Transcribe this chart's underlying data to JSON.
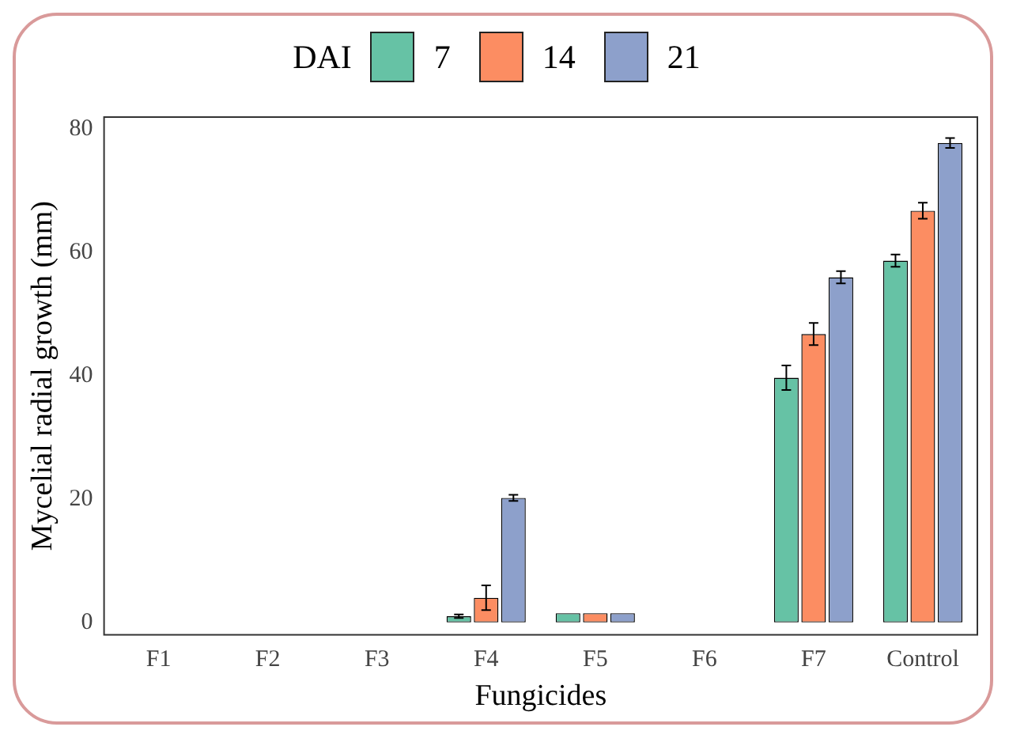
{
  "chart_data": {
    "type": "bar",
    "xlabel": "Fungicides",
    "ylabel": "Mycelial radial growth (mm)",
    "legend_title": "DAI",
    "legend": "top",
    "categories": [
      "F1",
      "F2",
      "F3",
      "F4",
      "F5",
      "F6",
      "F7",
      "Control"
    ],
    "series": [
      {
        "name": "7",
        "color": "#66c2a5",
        "values": [
          0,
          0,
          0,
          1,
          1.5,
          0,
          39.7,
          58.7
        ],
        "errors": [
          null,
          null,
          null,
          0.3,
          null,
          null,
          2,
          1
        ]
      },
      {
        "name": "14",
        "color": "#fc8d62",
        "values": [
          0,
          0,
          0,
          4,
          1.5,
          0,
          46.8,
          66.8
        ],
        "errors": [
          null,
          null,
          null,
          2,
          null,
          null,
          1.8,
          1.3
        ]
      },
      {
        "name": "21",
        "color": "#8da0cb",
        "values": [
          0,
          0,
          0,
          20.2,
          1.5,
          0,
          56,
          77.8
        ],
        "errors": [
          null,
          null,
          null,
          0.5,
          null,
          null,
          1,
          0.8
        ]
      }
    ],
    "ylim": [
      -2,
      82
    ],
    "yticks": [
      0,
      20,
      40,
      60,
      80
    ],
    "grid": false
  }
}
